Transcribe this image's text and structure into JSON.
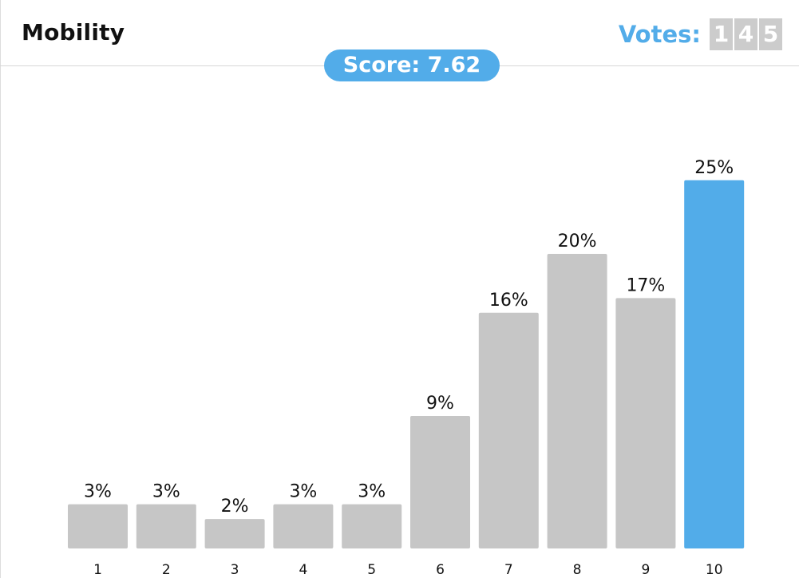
{
  "header": {
    "title": "Mobility",
    "votes_label": "Votes:",
    "votes_digits": [
      "1",
      "4",
      "5"
    ]
  },
  "score": {
    "label": "Score: 7.62"
  },
  "colors": {
    "accent": "#52ace9",
    "bar": "#c6c6c6",
    "highlight_bar": "#52ace9",
    "digit_bg": "#cccccc"
  },
  "chart_data": {
    "type": "bar",
    "categories": [
      "1",
      "2",
      "3",
      "4",
      "5",
      "6",
      "7",
      "8",
      "9",
      "10"
    ],
    "values": [
      3,
      3,
      2,
      3,
      3,
      9,
      16,
      20,
      17,
      25
    ],
    "value_labels": [
      "3%",
      "3%",
      "2%",
      "3%",
      "3%",
      "9%",
      "16%",
      "20%",
      "17%",
      "25%"
    ],
    "highlight_category": "10",
    "unit": "%",
    "title": "",
    "xlabel": "",
    "ylabel": "",
    "ylim": [
      0,
      25
    ],
    "grid": false,
    "legend": "none"
  }
}
